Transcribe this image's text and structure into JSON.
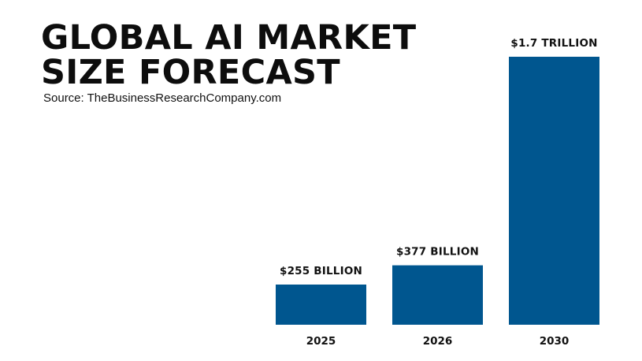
{
  "header": {
    "title_line1": "GLOBAL AI MARKET",
    "title_line2": "SIZE FORECAST",
    "source": "Source: TheBusinessResearchCompany.com"
  },
  "colors": {
    "bar": "#00568f",
    "text": "#111111"
  },
  "chart_data": {
    "type": "bar",
    "title": "GLOBAL AI MARKET SIZE FORECAST",
    "subtitle": "Source: TheBusinessResearchCompany.com",
    "xlabel": "",
    "ylabel": "",
    "categories": [
      "2025",
      "2026",
      "2030"
    ],
    "values": [
      255,
      377,
      1700
    ],
    "data_labels": [
      "$255 BILLION",
      "$377 BILLION",
      "$1.7 TRILLION"
    ],
    "units": "billion USD",
    "ylim": [
      0,
      1700
    ],
    "grid": false,
    "legend": "none"
  }
}
